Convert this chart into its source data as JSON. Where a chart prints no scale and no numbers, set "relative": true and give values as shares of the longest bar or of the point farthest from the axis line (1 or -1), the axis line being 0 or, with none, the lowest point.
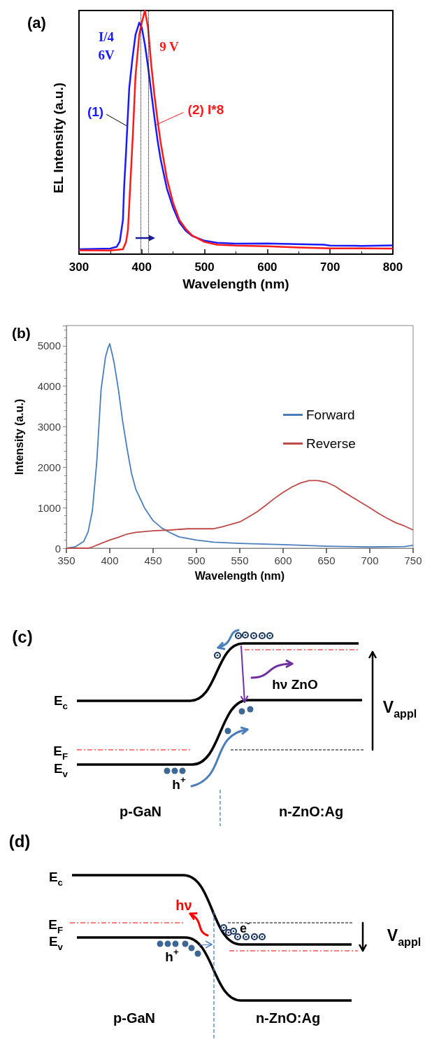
{
  "chart_data": [
    {
      "type": "line",
      "title": "(a)",
      "xlabel": "Wavelength (nm)",
      "ylabel": "EL Intensity (a.u.)",
      "relative": true,
      "xlim": [
        300,
        800
      ],
      "xticks": [
        300,
        400,
        500,
        600,
        700,
        800
      ],
      "series": [
        {
          "color": "#1a1aff",
          "x": [
            300,
            350,
            360,
            365,
            370,
            372,
            375,
            377,
            380,
            385,
            390,
            396,
            400,
            405,
            410,
            415,
            420,
            425,
            430,
            440,
            450,
            460,
            470,
            480,
            500,
            520,
            550,
            600,
            650,
            690,
            700,
            750,
            800
          ],
          "values": [
            0.02,
            0.023,
            0.03,
            0.052,
            0.14,
            0.28,
            0.42,
            0.525,
            0.68,
            0.8,
            0.9,
            0.95,
            0.93,
            0.86,
            0.77,
            0.667,
            0.565,
            0.47,
            0.39,
            0.27,
            0.19,
            0.13,
            0.096,
            0.075,
            0.055,
            0.047,
            0.043,
            0.044,
            0.041,
            0.039,
            0.035,
            0.034,
            0.036
          ]
        },
        {
          "color": "#ff1a1a",
          "x": [
            300,
            350,
            370,
            375,
            378,
            382,
            386,
            390,
            396,
            400,
            405,
            410,
            415,
            420,
            425,
            430,
            440,
            450,
            460,
            470,
            480,
            500,
            520,
            550,
            600,
            650,
            700,
            750,
            800
          ],
          "values": [
            0.016,
            0.015,
            0.02,
            0.05,
            0.1,
            0.3,
            0.5,
            0.73,
            0.9,
            0.95,
            1,
            0.93,
            0.78,
            0.656,
            0.553,
            0.46,
            0.31,
            0.21,
            0.14,
            0.104,
            0.077,
            0.05,
            0.039,
            0.035,
            0.032,
            0.027,
            0.024,
            0.024,
            0.023
          ]
        }
      ],
      "ref_lines": [
        {
          "axis": "x",
          "value": 398,
          "color": "#000000",
          "line_style": "dotted"
        },
        {
          "axis": "x",
          "value": 410,
          "color": "#000000",
          "line_style": "dotted"
        }
      ],
      "annotations": [
        "I/4",
        "6V",
        "9 V",
        {
          "text": "(1)",
          "x": 377,
          "y": 0.525
        },
        {
          "text": "(2) I*8",
          "x": 422,
          "y": 0.53
        }
      ]
    },
    {
      "type": "line",
      "title": "(b)",
      "xlabel": "Wavelength (nm)",
      "ylabel": "Intensity (a.u.)",
      "xlim": [
        350,
        750
      ],
      "xticks": [
        350,
        400,
        450,
        500,
        550,
        600,
        650,
        700,
        750
      ],
      "ylim": [
        0,
        5500
      ],
      "yticks": [
        0,
        1000,
        2000,
        3000,
        4000,
        5000
      ],
      "legend": "right",
      "series": [
        {
          "name": "Forward",
          "color": "#4a7ebb",
          "x": [
            350,
            360,
            370,
            375,
            380,
            385,
            390,
            395,
            398,
            400,
            403,
            405,
            410,
            415,
            420,
            425,
            430,
            440,
            450,
            460,
            470,
            480,
            500,
            520,
            550,
            600,
            650,
            700,
            740,
            750
          ],
          "values": [
            0,
            30,
            170,
            400,
            930,
            2120,
            3920,
            4710,
            4950,
            5050,
            4780,
            4580,
            3920,
            3120,
            2460,
            1860,
            1460,
            1000,
            680,
            500,
            380,
            280,
            200,
            150,
            120,
            90,
            50,
            30,
            40,
            70
          ]
        },
        {
          "name": "Reverse",
          "color": "#be4b48",
          "x": [
            350,
            375,
            380,
            390,
            400,
            410,
            420,
            430,
            450,
            470,
            490,
            520,
            530,
            540,
            550,
            560,
            570,
            580,
            590,
            600,
            610,
            620,
            630,
            640,
            650,
            660,
            670,
            680,
            690,
            700,
            710,
            720,
            730,
            740,
            750
          ],
          "values": [
            0,
            0,
            30,
            120,
            200,
            270,
            350,
            390,
            430,
            450,
            480,
            480,
            530,
            590,
            650,
            770,
            900,
            1060,
            1230,
            1380,
            1510,
            1610,
            1670,
            1670,
            1630,
            1530,
            1390,
            1260,
            1130,
            1000,
            860,
            740,
            630,
            550,
            450
          ]
        }
      ]
    },
    {
      "type": "other",
      "title": "(c)",
      "annotations": [
        "E$_{c}$",
        "E$_{F}$",
        "E$_{v}$",
        "h$^{+}$",
        "hν ZnO",
        "V$_{appl}$",
        "p-GaN",
        "n-ZnO:Ag"
      ]
    },
    {
      "type": "other",
      "title": "(d)",
      "annotations": [
        "E$_{c}$",
        "hν",
        "E$_{F}$",
        "e$^{-}$",
        "E$_{v}$",
        "h$^{+}$",
        "V$_{appl}$",
        "p-GaN",
        "n-ZnO:Ag"
      ]
    }
  ]
}
